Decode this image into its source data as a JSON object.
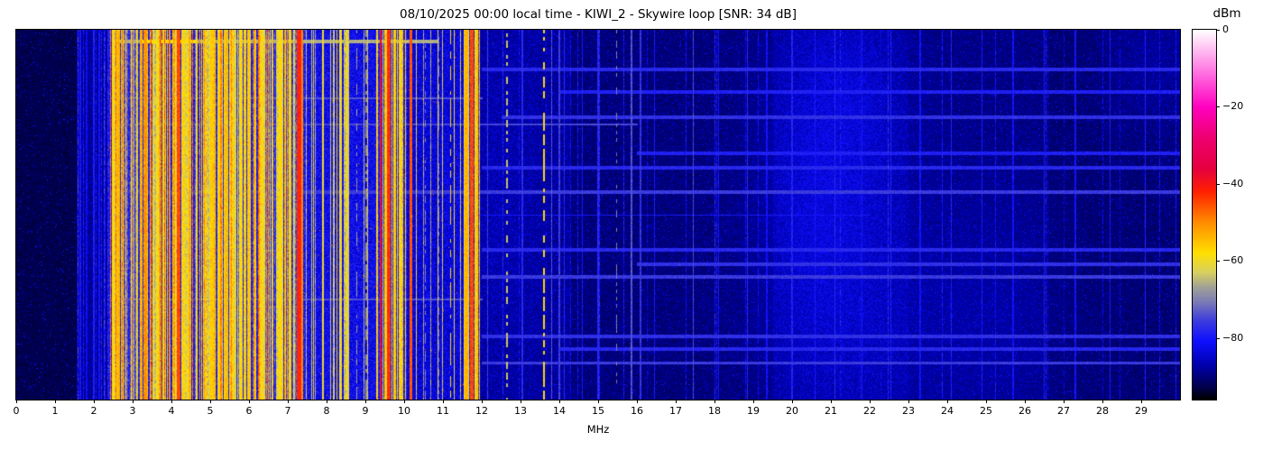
{
  "chart_data": {
    "type": "heatmap",
    "title": "08/10/2025 00:00 local time - KIWI_2 - Skywire loop [SNR: 34 dB]",
    "xlabel": "MHz",
    "x_range": [
      0,
      30
    ],
    "x_ticks": [
      0,
      1,
      2,
      3,
      4,
      5,
      6,
      7,
      8,
      9,
      10,
      11,
      12,
      13,
      14,
      15,
      16,
      17,
      18,
      19,
      20,
      21,
      22,
      23,
      24,
      25,
      26,
      27,
      28,
      29
    ],
    "grid": false,
    "colorbar": {
      "label": "dBm",
      "range": [
        0,
        -96
      ],
      "ticks": [
        {
          "value": 0,
          "label": "0"
        },
        {
          "value": -20,
          "label": "−20"
        },
        {
          "value": -40,
          "label": "−40"
        },
        {
          "value": -60,
          "label": "−60"
        },
        {
          "value": -80,
          "label": "−80"
        }
      ],
      "stops": [
        [
          0,
          "#ffffff"
        ],
        [
          -4,
          "#ffccf4"
        ],
        [
          -12,
          "#ff66dd"
        ],
        [
          -20,
          "#ff00c0"
        ],
        [
          -28,
          "#ee0070"
        ],
        [
          -36,
          "#e60040"
        ],
        [
          -42,
          "#ff2000"
        ],
        [
          -50,
          "#ff8c00"
        ],
        [
          -58,
          "#ffe000"
        ],
        [
          -63,
          "#d8d060"
        ],
        [
          -67,
          "#a0a098"
        ],
        [
          -71,
          "#7878b8"
        ],
        [
          -76,
          "#3838e0"
        ],
        [
          -81,
          "#0f0fff"
        ],
        [
          -87,
          "#0000b0"
        ],
        [
          -93,
          "#000048"
        ],
        [
          -96,
          "#000000"
        ]
      ]
    },
    "bands_format": [
      "f_start_MHz",
      "f_end_MHz",
      "base_level_dBm",
      "noise_dB"
    ],
    "bands": [
      [
        0.0,
        1.55,
        -92.5,
        2.0
      ],
      [
        1.55,
        2.35,
        -88.0,
        3.5
      ],
      [
        2.35,
        7.45,
        -79.5,
        5.5
      ],
      [
        7.45,
        9.3,
        -82.0,
        5.0
      ],
      [
        9.3,
        10.05,
        -79.5,
        5.5
      ],
      [
        10.05,
        11.52,
        -84.0,
        4.5
      ],
      [
        11.52,
        11.95,
        -78.5,
        5.5
      ],
      [
        11.95,
        13.2,
        -88.5,
        3.2
      ],
      [
        13.2,
        14.3,
        -88.0,
        3.2
      ],
      [
        14.3,
        19.5,
        -90.0,
        2.8
      ],
      [
        19.5,
        23.0,
        -88.5,
        3.0
      ],
      [
        23.0,
        26.5,
        -89.5,
        2.8
      ],
      [
        26.5,
        30.0,
        -90.5,
        2.6
      ]
    ],
    "stripe_zones_format": [
      "f_start_MHz",
      "f_end_MHz",
      "density",
      "level_min_dBm",
      "level_max_dBm"
    ],
    "stripe_zones": [
      [
        1.55,
        2.35,
        0.25,
        -84,
        -77
      ],
      [
        2.35,
        7.45,
        0.4,
        -64,
        -55
      ],
      [
        2.35,
        7.45,
        0.12,
        -53,
        -46
      ],
      [
        2.35,
        7.45,
        0.3,
        -77,
        -70
      ],
      [
        7.45,
        9.3,
        0.15,
        -67,
        -58
      ],
      [
        9.3,
        10.05,
        0.4,
        -63,
        -55
      ],
      [
        10.05,
        11.52,
        0.1,
        -70,
        -60
      ],
      [
        11.52,
        11.95,
        0.5,
        -62,
        -53
      ],
      [
        11.95,
        30.0,
        0.05,
        -86,
        -79
      ]
    ],
    "lines_format": [
      "f_MHz",
      "width_MHz",
      "level_dBm",
      "dashed"
    ],
    "lines": [
      [
        1.66,
        0.05,
        -80,
        0
      ],
      [
        1.82,
        0.04,
        -82,
        0
      ],
      [
        2.0,
        0.05,
        -79,
        0
      ],
      [
        2.14,
        0.04,
        -81,
        0
      ],
      [
        2.5,
        0.07,
        -58,
        0
      ],
      [
        2.62,
        0.09,
        -55,
        0
      ],
      [
        2.74,
        0.05,
        -59,
        0
      ],
      [
        3.02,
        0.04,
        -74,
        0
      ],
      [
        3.22,
        0.08,
        -55,
        0
      ],
      [
        3.34,
        0.07,
        -51,
        0
      ],
      [
        3.62,
        0.05,
        -60,
        0
      ],
      [
        3.8,
        0.08,
        -57,
        0
      ],
      [
        3.96,
        0.05,
        -50,
        0
      ],
      [
        4.19,
        0.09,
        -45,
        0
      ],
      [
        4.33,
        0.04,
        -57,
        0
      ],
      [
        4.47,
        0.07,
        -55,
        0
      ],
      [
        4.65,
        0.05,
        -60,
        0
      ],
      [
        4.85,
        0.05,
        -58,
        0
      ],
      [
        5.06,
        0.1,
        -56,
        0
      ],
      [
        5.22,
        0.08,
        -57,
        0
      ],
      [
        5.4,
        0.07,
        -55,
        0
      ],
      [
        5.62,
        0.04,
        -62,
        0
      ],
      [
        5.78,
        0.05,
        -58,
        0
      ],
      [
        6.0,
        0.09,
        -56,
        0
      ],
      [
        6.16,
        0.07,
        -57,
        0
      ],
      [
        6.34,
        0.05,
        -60,
        0
      ],
      [
        6.6,
        0.04,
        -63,
        0
      ],
      [
        6.8,
        0.06,
        -58,
        0
      ],
      [
        7.05,
        0.07,
        -57,
        0
      ],
      [
        7.29,
        0.11,
        -42,
        0
      ],
      [
        7.38,
        0.04,
        -50,
        0
      ],
      [
        7.62,
        0.03,
        -64,
        0
      ],
      [
        7.9,
        0.04,
        -60,
        0
      ],
      [
        8.1,
        0.03,
        -63,
        0
      ],
      [
        8.38,
        0.05,
        -60,
        0
      ],
      [
        8.55,
        0.04,
        -62,
        0
      ],
      [
        8.78,
        0.03,
        -68,
        1
      ],
      [
        9.02,
        0.03,
        -69,
        1
      ],
      [
        9.4,
        0.06,
        -38,
        0
      ],
      [
        9.6,
        0.08,
        -43,
        0
      ],
      [
        9.75,
        0.07,
        -56,
        0
      ],
      [
        9.9,
        0.06,
        -57,
        0
      ],
      [
        10.18,
        0.08,
        -46,
        0
      ],
      [
        10.55,
        0.03,
        -70,
        1
      ],
      [
        10.9,
        0.03,
        -72,
        1
      ],
      [
        11.2,
        0.04,
        -58,
        1
      ],
      [
        11.6,
        0.08,
        -54,
        0
      ],
      [
        11.74,
        0.1,
        -45,
        0
      ],
      [
        11.86,
        0.08,
        -56,
        0
      ],
      [
        12.15,
        0.03,
        -76,
        0
      ],
      [
        12.65,
        0.03,
        -64,
        1
      ],
      [
        13.05,
        0.03,
        -78,
        0
      ],
      [
        13.6,
        0.04,
        -58,
        1
      ],
      [
        13.8,
        0.03,
        -74,
        0
      ],
      [
        14.0,
        0.03,
        -76,
        0
      ],
      [
        14.12,
        0.03,
        -78,
        0
      ],
      [
        14.6,
        0.03,
        -80,
        0
      ],
      [
        15.0,
        0.03,
        -78,
        0
      ],
      [
        15.47,
        0.03,
        -70,
        1
      ],
      [
        15.86,
        0.03,
        -74,
        0
      ],
      [
        16.1,
        0.04,
        -77,
        0
      ],
      [
        16.45,
        0.03,
        -80,
        0
      ],
      [
        17.45,
        0.03,
        -75,
        0
      ],
      [
        18.1,
        0.03,
        -80,
        0
      ],
      [
        18.85,
        0.03,
        -78,
        0
      ],
      [
        19.35,
        0.03,
        -81,
        0
      ],
      [
        20.0,
        0.03,
        -79,
        0
      ],
      [
        20.6,
        0.03,
        -80,
        0
      ],
      [
        21.1,
        0.03,
        -78,
        0
      ],
      [
        21.8,
        0.03,
        -80,
        0
      ],
      [
        22.55,
        0.03,
        -79,
        0
      ],
      [
        23.3,
        0.03,
        -81,
        0
      ],
      [
        24.1,
        0.03,
        -79,
        0
      ],
      [
        24.9,
        0.03,
        -80,
        0
      ],
      [
        25.7,
        0.03,
        -81,
        0
      ],
      [
        26.5,
        0.03,
        -80,
        0
      ],
      [
        27.3,
        0.03,
        -81,
        0
      ],
      [
        28.2,
        0.03,
        -80,
        0
      ],
      [
        29.1,
        0.03,
        -79,
        0
      ]
    ],
    "h_streaks_format": [
      "y_fraction",
      "f_start_MHz",
      "f_end_MHz",
      "level_dBm",
      "thickness_px"
    ],
    "h_streaks": [
      [
        0.03,
        2.55,
        10.85,
        -66,
        2
      ],
      [
        0.03,
        3.25,
        4.65,
        -59,
        2
      ],
      [
        0.107,
        12.0,
        30.0,
        -78,
        2
      ],
      [
        0.168,
        14.0,
        30.0,
        -79,
        2
      ],
      [
        0.183,
        2.4,
        12.0,
        -74,
        1
      ],
      [
        0.236,
        12.5,
        30.0,
        -77,
        2
      ],
      [
        0.255,
        2.4,
        16.0,
        -75,
        1
      ],
      [
        0.334,
        16.0,
        30.0,
        -79,
        2
      ],
      [
        0.373,
        12.0,
        30.0,
        -78,
        2
      ],
      [
        0.439,
        2.4,
        30.0,
        -76,
        2
      ],
      [
        0.5,
        12.0,
        22.0,
        -80,
        1
      ],
      [
        0.593,
        12.0,
        30.0,
        -78,
        2
      ],
      [
        0.632,
        16.0,
        30.0,
        -77,
        2
      ],
      [
        0.668,
        12.0,
        30.0,
        -76,
        2
      ],
      [
        0.728,
        2.4,
        12.0,
        -74,
        1
      ],
      [
        0.827,
        12.0,
        30.0,
        -77,
        2
      ],
      [
        0.863,
        14.0,
        30.0,
        -78,
        2
      ],
      [
        0.9,
        12.0,
        30.0,
        -76,
        2
      ]
    ],
    "diffuse_patches_format": [
      "f_center_MHz",
      "f_sigma_MHz",
      "y_fraction",
      "y_sigma",
      "boost_dB"
    ],
    "diffuse_patches": [
      [
        21.4,
        1.1,
        0.18,
        0.22,
        3.5
      ],
      [
        21.2,
        1.4,
        0.72,
        0.28,
        3.0
      ],
      [
        24.8,
        1.6,
        0.78,
        0.25,
        2.2
      ],
      [
        12.4,
        0.7,
        0.45,
        0.45,
        2.0
      ],
      [
        29.3,
        0.9,
        0.08,
        0.15,
        2.5
      ],
      [
        20.3,
        1.0,
        0.45,
        0.3,
        2.0
      ]
    ]
  }
}
